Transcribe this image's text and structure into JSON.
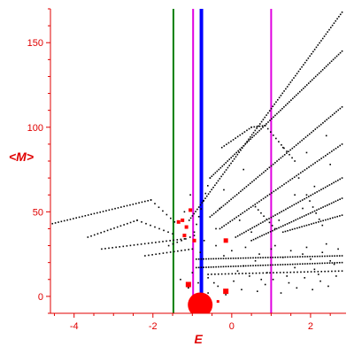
{
  "chart_data": {
    "type": "scatter",
    "xlabel": "E",
    "ylabel": "<M>",
    "xlim": [
      -4.6,
      2.9
    ],
    "ylim": [
      -10,
      170
    ],
    "x_ticks": [
      -4,
      -2,
      0,
      2
    ],
    "x_tick_labels": [
      "-4",
      "-2",
      "0",
      "2"
    ],
    "y_ticks": [
      0,
      50,
      100,
      150
    ],
    "y_tick_labels": [
      "0",
      "50",
      "100",
      "150"
    ],
    "colors": {
      "axis": "#e00000",
      "points": "#000000",
      "highlight": "#ff0000",
      "green_line": "#008000",
      "blue_line": "#0000ff",
      "magenta_line": "#e000e0"
    },
    "vertical_lines": [
      {
        "x": -1.48,
        "color": "green",
        "width": 2
      },
      {
        "x": -0.98,
        "color": "magenta",
        "width": 2
      },
      {
        "x": -0.77,
        "color": "blue",
        "width": 4
      },
      {
        "x": 1.0,
        "color": "magenta",
        "width": 2
      }
    ],
    "line_series": [
      {
        "start": [
          -4.55,
          43
        ],
        "end": [
          -2.05,
          57
        ],
        "count": 34
      },
      {
        "start": [
          -2.05,
          57
        ],
        "end": [
          -1.45,
          44
        ],
        "count": 7
      },
      {
        "start": [
          -3.65,
          35
        ],
        "end": [
          -2.4,
          45
        ],
        "count": 16
      },
      {
        "start": [
          -2.4,
          45
        ],
        "end": [
          -1.5,
          37
        ],
        "count": 9
      },
      {
        "start": [
          -3.3,
          28
        ],
        "end": [
          -1.2,
          34
        ],
        "count": 24
      },
      {
        "start": [
          -2.2,
          24
        ],
        "end": [
          -1.0,
          28
        ],
        "count": 14
      },
      {
        "start": [
          -1.6,
          30
        ],
        "end": [
          -0.95,
          36
        ],
        "count": 7
      },
      {
        "start": [
          -1.08,
          45
        ],
        "end": [
          2.8,
          168
        ],
        "count": 96
      },
      {
        "start": [
          -0.95,
          38
        ],
        "end": [
          -0.55,
          70
        ],
        "count": 8
      },
      {
        "start": [
          -0.55,
          70
        ],
        "end": [
          2.8,
          145
        ],
        "count": 76
      },
      {
        "start": [
          -0.25,
          88
        ],
        "end": [
          0.5,
          100
        ],
        "count": 14
      },
      {
        "start": [
          0.5,
          100
        ],
        "end": [
          0.85,
          101
        ],
        "count": 6
      },
      {
        "start": [
          0.85,
          101
        ],
        "end": [
          1.6,
          80
        ],
        "count": 12
      },
      {
        "start": [
          -0.55,
          47
        ],
        "end": [
          2.8,
          112
        ],
        "count": 70
      },
      {
        "start": [
          -0.3,
          40
        ],
        "end": [
          2.8,
          90
        ],
        "count": 60
      },
      {
        "start": [
          0.1,
          35
        ],
        "end": [
          2.8,
          70
        ],
        "count": 52
      },
      {
        "start": [
          0.5,
          33
        ],
        "end": [
          2.8,
          58
        ],
        "count": 44
      },
      {
        "start": [
          1.3,
          38
        ],
        "end": [
          2.8,
          48
        ],
        "count": 26
      },
      {
        "start": [
          1.9,
          60
        ],
        "end": [
          2.3,
          42
        ],
        "count": 6
      },
      {
        "start": [
          0.6,
          53
        ],
        "end": [
          1.1,
          40
        ],
        "count": 8
      },
      {
        "start": [
          -0.9,
          22
        ],
        "end": [
          2.8,
          24
        ],
        "count": 60
      },
      {
        "start": [
          -0.9,
          17
        ],
        "end": [
          2.8,
          20
        ],
        "count": 60
      },
      {
        "start": [
          -0.6,
          13
        ],
        "end": [
          2.8,
          15
        ],
        "count": 40
      }
    ],
    "scatter_points": [
      [
        -1.3,
        10
      ],
      [
        -1.1,
        5
      ],
      [
        -0.85,
        8
      ],
      [
        -0.6,
        2
      ],
      [
        -0.35,
        6
      ],
      [
        -0.15,
        1
      ],
      [
        0.05,
        9
      ],
      [
        0.25,
        4
      ],
      [
        0.45,
        12
      ],
      [
        0.65,
        3
      ],
      [
        0.85,
        7
      ],
      [
        1.05,
        10
      ],
      [
        1.25,
        2
      ],
      [
        1.45,
        8
      ],
      [
        1.65,
        5
      ],
      [
        1.85,
        11
      ],
      [
        2.05,
        4
      ],
      [
        2.25,
        9
      ],
      [
        2.45,
        6
      ],
      [
        2.65,
        12
      ],
      [
        -0.8,
        26
      ],
      [
        -0.4,
        30
      ],
      [
        0.0,
        27
      ],
      [
        0.35,
        29
      ],
      [
        0.7,
        25
      ],
      [
        1.1,
        30
      ],
      [
        1.5,
        27
      ],
      [
        1.9,
        29
      ],
      [
        2.3,
        26
      ],
      [
        2.7,
        28
      ],
      [
        -0.6,
        11
      ],
      [
        0.3,
        18
      ],
      [
        0.9,
        14
      ],
      [
        1.6,
        17
      ],
      [
        2.2,
        13
      ],
      [
        -1.0,
        14
      ],
      [
        1.0,
        28
      ],
      [
        2.0,
        22
      ],
      [
        -0.2,
        24
      ],
      [
        0.6,
        21
      ],
      [
        1.3,
        23
      ],
      [
        1.8,
        25
      ],
      [
        2.5,
        21
      ],
      [
        -0.45,
        8
      ],
      [
        0.15,
        15
      ],
      [
        0.75,
        10
      ],
      [
        1.4,
        12
      ],
      [
        2.1,
        16
      ],
      [
        2.6,
        19
      ],
      [
        -0.7,
        33
      ],
      [
        0.5,
        38
      ],
      [
        1.2,
        45
      ],
      [
        1.8,
        52
      ],
      [
        2.4,
        31
      ],
      [
        0.2,
        45
      ],
      [
        -0.3,
        52
      ],
      [
        1.6,
        60
      ],
      [
        2.1,
        65
      ],
      [
        1.7,
        70
      ],
      [
        2.5,
        78
      ],
      [
        1.9,
        85
      ],
      [
        2.4,
        95
      ],
      [
        -0.2,
        63
      ],
      [
        0.3,
        75
      ],
      [
        1.3,
        88
      ],
      [
        -1.05,
        60
      ],
      [
        -1.2,
        50
      ],
      [
        -0.4,
        40
      ]
    ],
    "highlight_points": [
      {
        "x": -1.35,
        "y": 44,
        "r": 2
      },
      {
        "x": -1.25,
        "y": 45,
        "r": 2
      },
      {
        "x": -1.15,
        "y": 41,
        "r": 2
      },
      {
        "x": -1.05,
        "y": 51,
        "r": 2
      },
      {
        "x": -1.2,
        "y": 36,
        "r": 2
      },
      {
        "x": -0.95,
        "y": 33,
        "r": 2
      },
      {
        "x": -0.15,
        "y": 33,
        "r": 2.5
      },
      {
        "x": -1.1,
        "y": 7,
        "r": 3
      },
      {
        "x": -0.15,
        "y": 3,
        "r": 3
      },
      {
        "x": -0.35,
        "y": -3,
        "r": 1.5
      },
      {
        "x": -0.8,
        "y": -5,
        "r": 14
      }
    ]
  }
}
